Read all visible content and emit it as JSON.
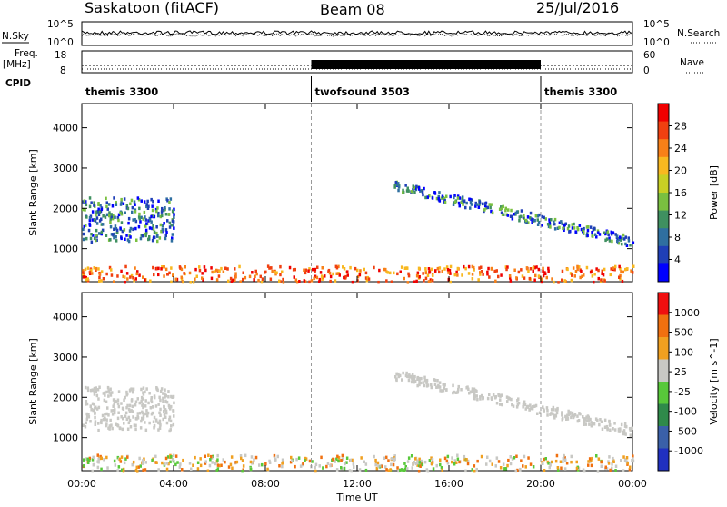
{
  "header": {
    "site_title": "Saskatoon (fitACF)",
    "beam": "Beam 08",
    "date": "25/Jul/2016"
  },
  "panels": {
    "nsky_label": "N.Sky",
    "nsearch_label": "N.Search",
    "nsky_ticks": [
      "10^5",
      "10^0"
    ],
    "nsearch_ticks": [
      "10^5",
      "10^0"
    ],
    "freq_label": "Freq.",
    "freq_unit": "[MHz]",
    "freq_ticks": [
      "18",
      "8"
    ],
    "nave_label": "Nave",
    "nave_ticks": [
      "60",
      "0"
    ],
    "cpid_label": "CPID"
  },
  "cpid_segments": [
    {
      "name": "themis 3300",
      "start_h": 0,
      "end_h": 10
    },
    {
      "name": "twofsound 3503",
      "start_h": 10,
      "end_h": 20
    },
    {
      "name": "themis 3300",
      "start_h": 20,
      "end_h": 24
    }
  ],
  "chart_data": [
    {
      "type": "heatmap",
      "title": "Power",
      "ylabel": "Slant Range [km]",
      "xlabel": "Time UT",
      "x_ticks": [
        "00:00",
        "04:00",
        "08:00",
        "12:00",
        "16:00",
        "20:00",
        "00:00"
      ],
      "xlim_hours": [
        0,
        24
      ],
      "ylim": [
        180,
        4600
      ],
      "y_ticks": [
        1000,
        2000,
        3000,
        4000
      ],
      "colorbar": {
        "label": "Power [dB]",
        "ticks": [
          "4",
          "8",
          "12",
          "16",
          "20",
          "24",
          "28"
        ],
        "range": [
          0,
          30
        ],
        "colors": [
          "#0000ff",
          "#1f3fb7",
          "#2f6fa0",
          "#3f9060",
          "#7ac040",
          "#c8d024",
          "#f8b820",
          "#f88018",
          "#f04010",
          "#f00000"
        ]
      },
      "features": [
        {
          "feature": "near-range band",
          "start_h": 0,
          "end_h": 24,
          "range_km": [
            200,
            600
          ]
        },
        {
          "feature": "morning echo cluster",
          "start_h": 0,
          "end_h": 4,
          "range_km": [
            1200,
            2300
          ]
        },
        {
          "feature": "evening arc",
          "start_h": 13.5,
          "end_h": 24,
          "range_km": [
            900,
            2600
          ]
        }
      ]
    },
    {
      "type": "heatmap",
      "title": "Velocity",
      "ylabel": "Slant Range [km]",
      "xlabel": "Time UT",
      "x_ticks": [
        "00:00",
        "04:00",
        "08:00",
        "12:00",
        "16:00",
        "20:00",
        "00:00"
      ],
      "xlim_hours": [
        0,
        24
      ],
      "ylim": [
        180,
        4600
      ],
      "y_ticks": [
        1000,
        2000,
        3000,
        4000
      ],
      "colorbar": {
        "label": "Velocity [m s^-1]",
        "ticks": [
          "1000",
          "500",
          "100",
          "25",
          "-25",
          "-100",
          "-500",
          "-1000"
        ],
        "colors": [
          "#2030c0",
          "#3a60a8",
          "#2f8a4a",
          "#58c83a",
          "#c8c8c4",
          "#f0a020",
          "#f07010",
          "#f01010"
        ]
      },
      "features": [
        {
          "feature": "near-range band",
          "start_h": 0,
          "end_h": 24,
          "range_km": [
            200,
            600
          ]
        },
        {
          "feature": "morning echo cluster",
          "start_h": 0,
          "end_h": 4,
          "range_km": [
            1200,
            2300
          ]
        },
        {
          "feature": "evening arc",
          "start_h": 13.5,
          "end_h": 24,
          "range_km": [
            900,
            2600
          ]
        }
      ]
    }
  ],
  "bottom": {
    "x_title": "Time UT"
  }
}
